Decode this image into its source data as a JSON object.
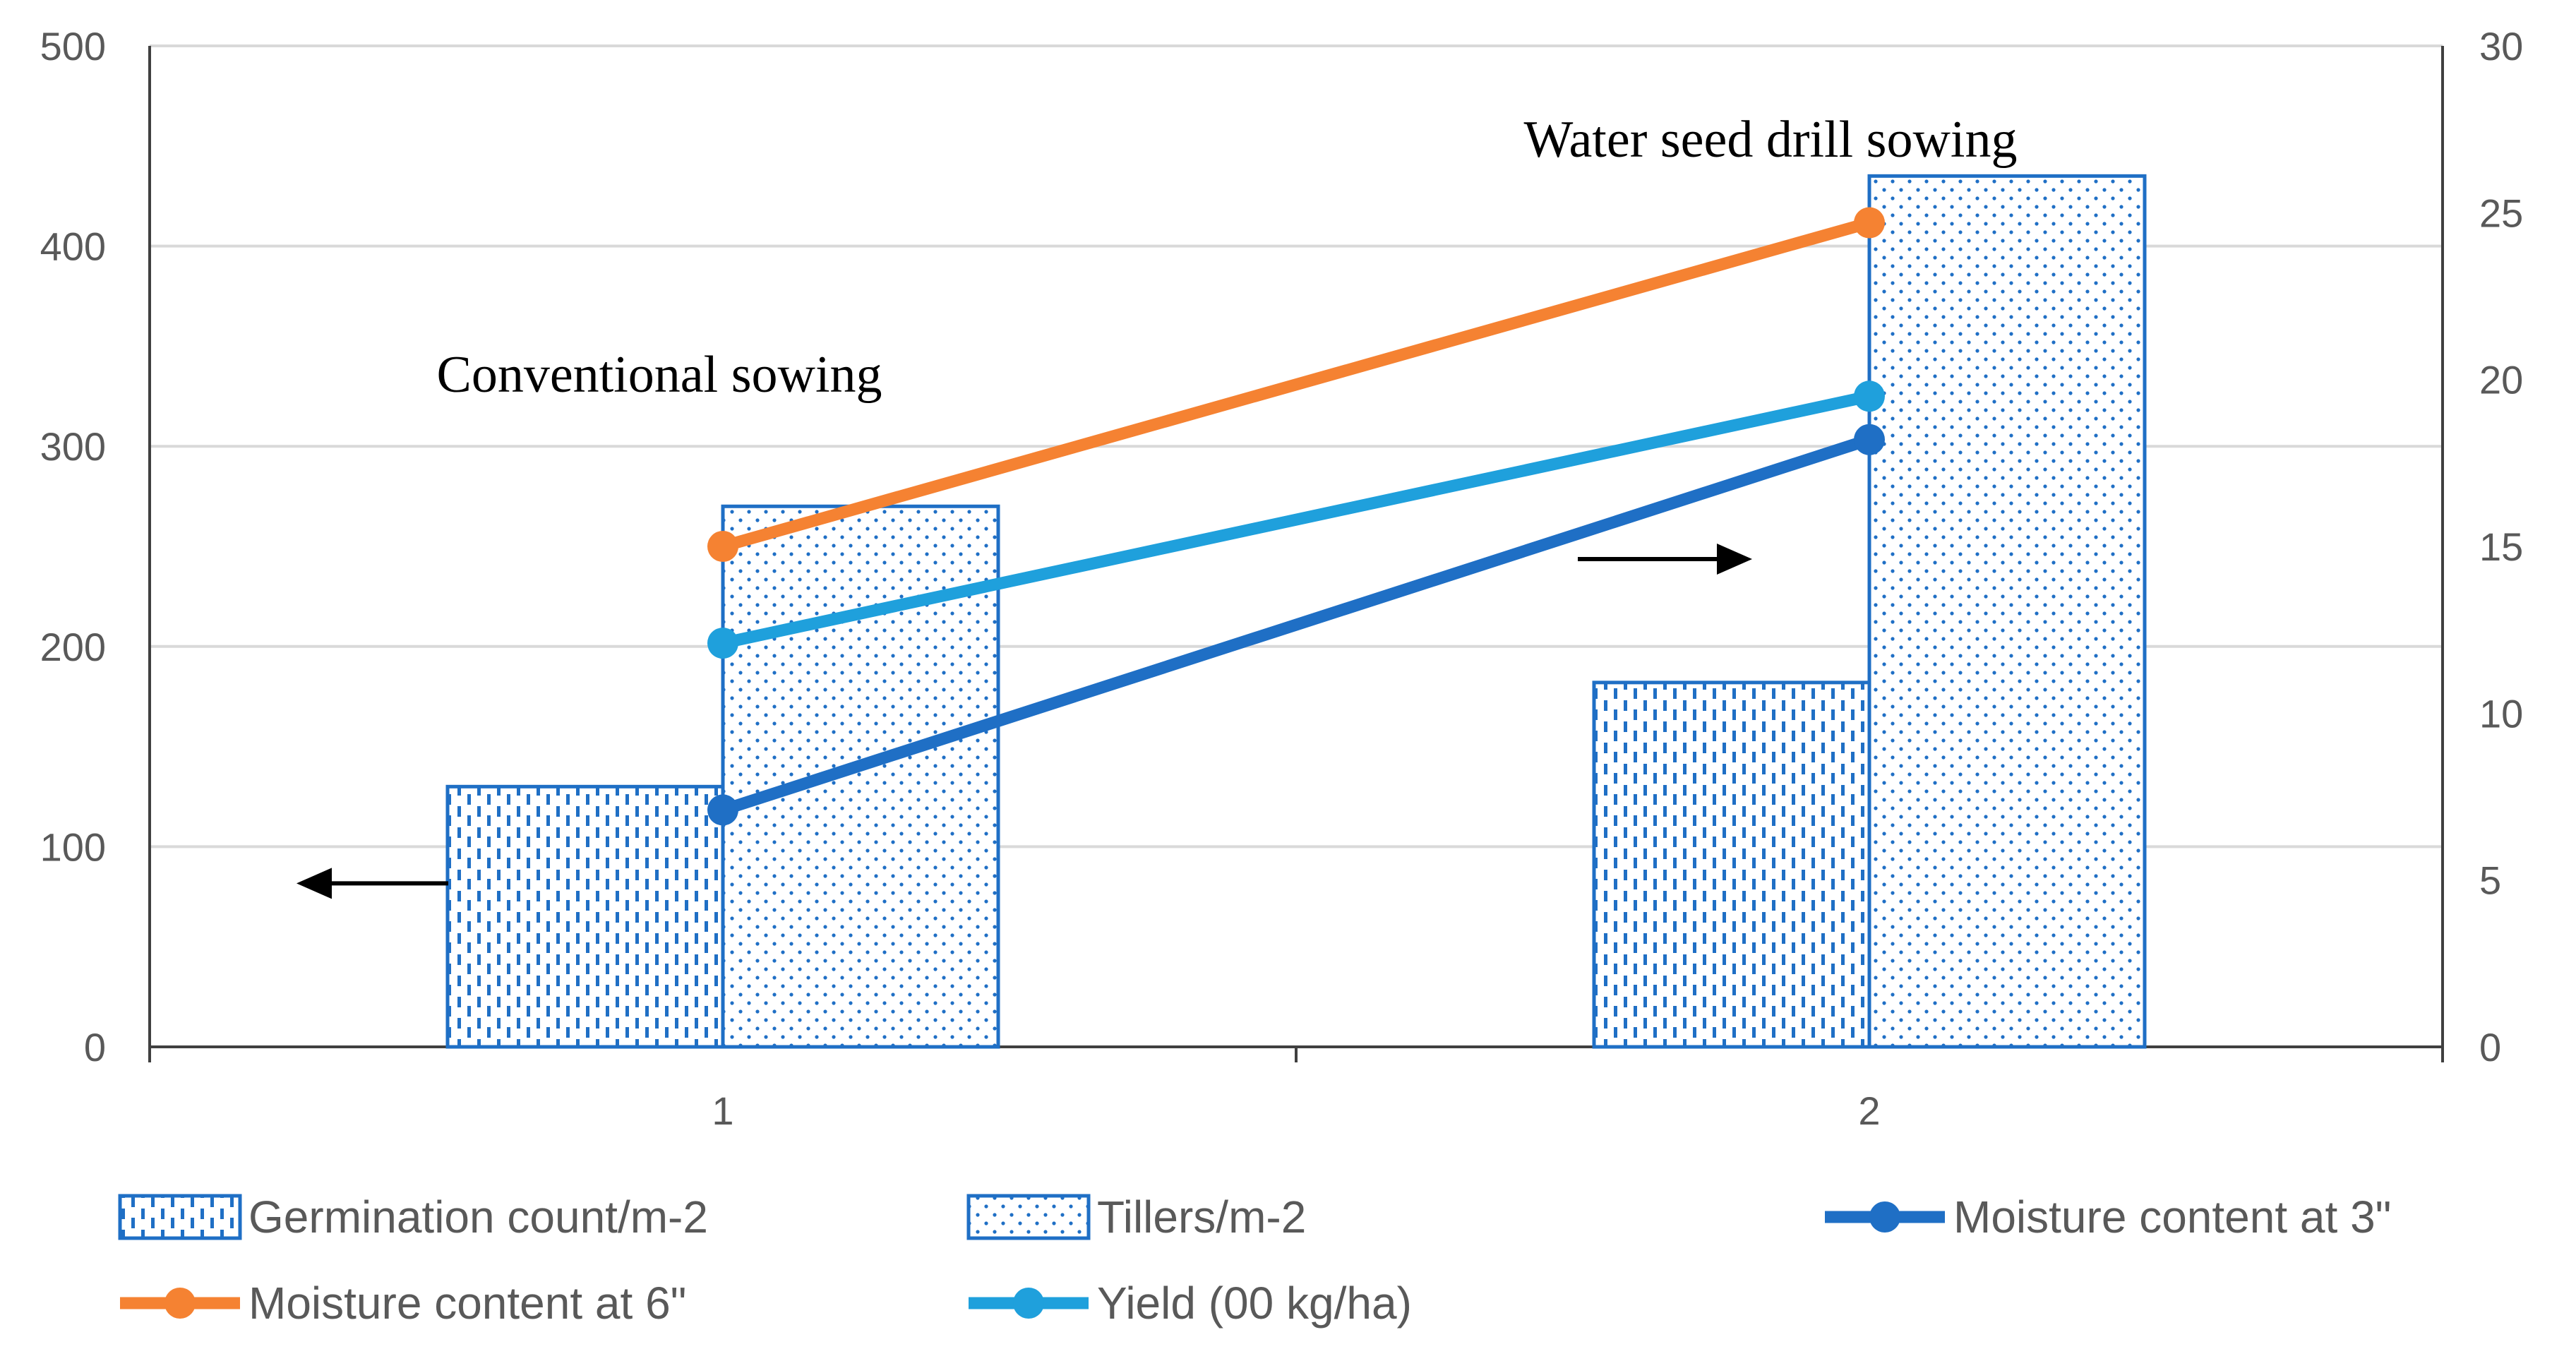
{
  "chart_data": {
    "type": "bar+line",
    "title": "",
    "categories": [
      "1",
      "2"
    ],
    "left_axis": {
      "range": [
        0,
        500
      ],
      "ticks": [
        "0",
        "100",
        "200",
        "300",
        "400",
        "500"
      ]
    },
    "right_axis": {
      "range": [
        0,
        30
      ],
      "ticks": [
        "0",
        "5",
        "10",
        "15",
        "20",
        "25",
        "30"
      ]
    },
    "grid": true,
    "bar_series": [
      {
        "name": "Germination count/m-2",
        "axis": "left",
        "pattern": "dashed-vertical",
        "color": "#1f6fc5",
        "values": [
          130,
          182
        ]
      },
      {
        "name": "Tillers/m-2",
        "axis": "left",
        "pattern": "dotted",
        "color": "#1f6fc5",
        "values": [
          270,
          435
        ]
      }
    ],
    "line_series": [
      {
        "name": "Moisture content at 3\"",
        "axis": "right",
        "color": "#1f6fc5",
        "values": [
          7.1,
          18.2
        ]
      },
      {
        "name": "Moisture content at 6\"",
        "axis": "right",
        "color": "#f58232",
        "values": [
          15.0,
          24.7
        ]
      },
      {
        "name": "Yield (00 kg/ha)",
        "axis": "right",
        "color": "#1fa0dc",
        "values": [
          12.1,
          19.5
        ]
      }
    ],
    "annotations": [
      {
        "text": "Conventional sowing",
        "near_category": "1"
      },
      {
        "text": "Water seed drill sowing",
        "near_category": "2"
      }
    ],
    "legend": {
      "position": "bottom",
      "items": [
        {
          "label": "Germination count/m-2",
          "kind": "bar",
          "pattern": "dashed-vertical"
        },
        {
          "label": "Tillers/m-2",
          "kind": "bar",
          "pattern": "dotted"
        },
        {
          "label": "Moisture content at 3\"",
          "kind": "line",
          "color": "#1f6fc5"
        },
        {
          "label": "Moisture content at 6\"",
          "kind": "line",
          "color": "#f58232"
        },
        {
          "label": "Yield (00 kg/ha)",
          "kind": "line",
          "color": "#1fa0dc"
        }
      ]
    }
  }
}
